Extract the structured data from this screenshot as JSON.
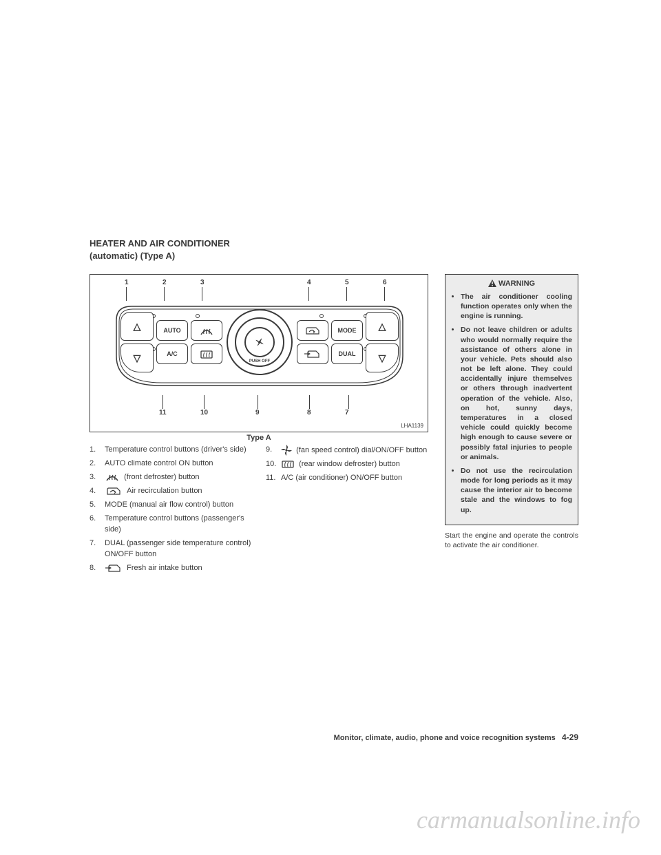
{
  "header": {
    "line1": "HEATER AND AIR CONDITIONER",
    "line2": "(automatic) (Type A)"
  },
  "diagram": {
    "code": "LHA1139",
    "caption": "Type A",
    "callouts_top": [
      "1",
      "2",
      "3",
      "4",
      "5",
      "6"
    ],
    "callouts_bottom": [
      "11",
      "10",
      "9",
      "8",
      "7"
    ],
    "buttons": {
      "auto": "AUTO",
      "ac": "A/C",
      "mode": "MODE",
      "dual": "DUAL",
      "pushoff": "PUSH OFF"
    }
  },
  "legend_left": [
    {
      "n": "1.",
      "t": "Temperature control buttons (driver's side)"
    },
    {
      "n": "2.",
      "t": "AUTO climate control ON button"
    },
    {
      "n": "3.",
      "t": "",
      "icon": "front-defrost",
      "after": "(front defroster) button"
    },
    {
      "n": "4.",
      "t": "",
      "icon": "recirc",
      "after": "Air recirculation button"
    },
    {
      "n": "5.",
      "t": "MODE (manual air flow control) button"
    },
    {
      "n": "6.",
      "t": "Temperature control buttons (passenger's side)"
    },
    {
      "n": "7.",
      "t": "DUAL (passenger side temperature control) ON/OFF button"
    },
    {
      "n": "8.",
      "t": "",
      "icon": "fresh",
      "after": "Fresh air intake button"
    }
  ],
  "legend_right": [
    {
      "n": "9.",
      "t": "",
      "icon": "fan",
      "after": "(fan speed control) dial/ON/OFF button"
    },
    {
      "n": "10.",
      "t": "",
      "icon": "rear-defrost",
      "after": "(rear window defroster) button"
    },
    {
      "n": "11.",
      "t": "A/C (air conditioner) ON/OFF button"
    }
  ],
  "warning": {
    "title": "WARNING",
    "items": [
      "The air conditioner cooling function operates only when the engine is running.",
      "Do not leave children or adults who would normally require the assistance of others alone in your vehicle. Pets should also not be left alone. They could accidentally injure themselves or others through inadvertent operation of the vehicle. Also, on hot, sunny days, temperatures in a closed vehicle could quickly become high enough to cause severe or possibly fatal injuries to people or animals.",
      "Do not use the recirculation mode for long periods as it may cause the interior air to become stale and the windows to fog up."
    ]
  },
  "after_warning": "Start the engine and operate the controls to activate the air conditioner.",
  "footer": {
    "section": "Monitor, climate, audio, phone and voice recognition systems",
    "page": "4-29"
  },
  "watermark": "carmanualsonline.info"
}
